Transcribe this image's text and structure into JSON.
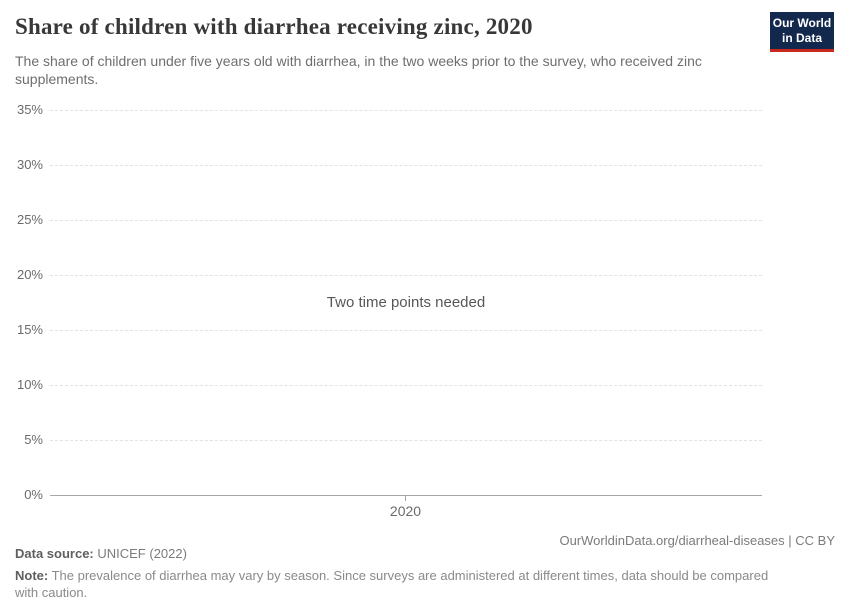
{
  "header": {
    "title": "Share of children with diarrhea receiving zinc, 2020",
    "subtitle": "The share of children under five years old with diarrhea, in the two weeks prior to the survey, who received zinc supplements.",
    "logo": {
      "line1": "Our World",
      "line2": "in Data",
      "bg_color": "#12294d",
      "bar_color": "#c9281f"
    }
  },
  "chart_data": {
    "type": "line",
    "title": "Share of children with diarrhea receiving zinc, 2020",
    "series": [],
    "message": "Two time points needed",
    "x_ticks": [
      "2020"
    ],
    "ytick_labels": [
      "0%",
      "5%",
      "10%",
      "15%",
      "20%",
      "25%",
      "30%",
      "35%"
    ],
    "ylim": [
      0,
      35
    ],
    "y_tick_interval": 5,
    "grid": "horizontal-dashed",
    "legend": "none"
  },
  "footer": {
    "datasource_label": "Data source:",
    "datasource_value": " UNICEF (2022)",
    "link": "OurWorldinData.org/diarrheal-diseases | CC BY",
    "note_label": "Note:",
    "note_text": " The prevalence of diarrhea may vary by season. Since surveys are administered at different times, data should be compared with caution."
  }
}
